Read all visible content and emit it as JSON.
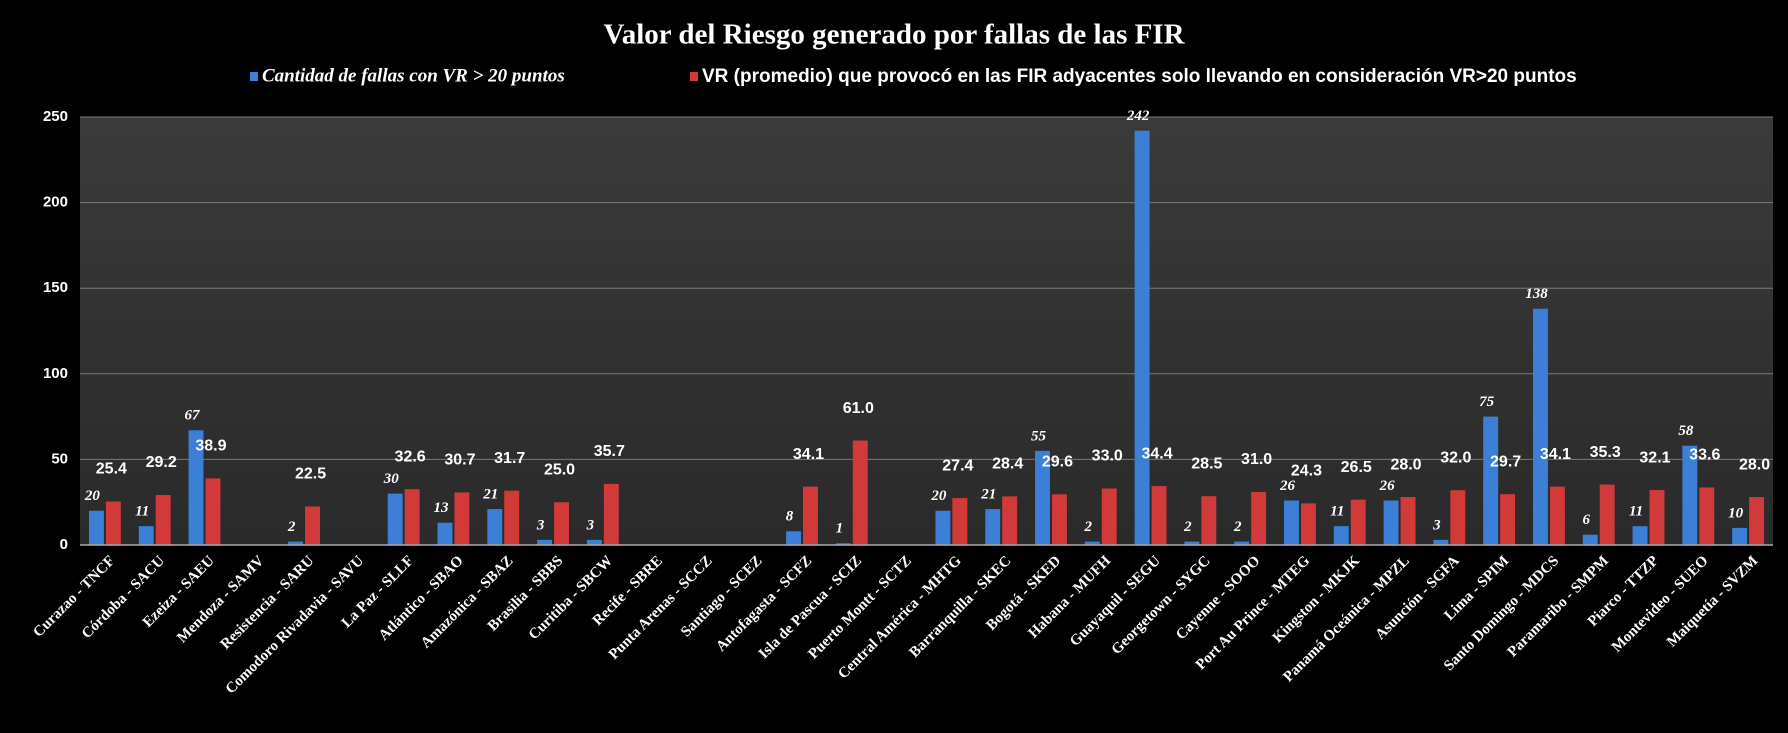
{
  "chart_data": {
    "type": "bar",
    "title": "Valor del Riesgo generado por fallas de las FIR",
    "categories": [
      "Curazao - TNCF",
      "Córdoba - SACU",
      "Ezeiza - SAEU",
      "Mendoza - SAMV",
      "Resistencia - SARU",
      "Comodoro Rivadavia - SAVU",
      "La Paz - SLLF",
      "Atlántico - SBAO",
      "Amazónica - SBAZ",
      "Brasilia - SBBS",
      "Curitiba - SBCW",
      "Recife - SBRE",
      "Punta Arenas - SCCZ",
      "Santiago - SCEZ",
      "Antofagasta - SCFZ",
      "Isla de Pascua - SCIZ",
      "Puerto Montt - SCTZ",
      "Central América - MHTG",
      "Barranquilla - SKEC",
      "Bogotá - SKED",
      "Habana - MUFH",
      "Guayaquil - SEGU",
      "Georgetown - SYGC",
      "Cayenne - SOOO",
      "Port Au Prince - MTEG",
      "Kingston - MKJK",
      "Panamá Oceánica - MPZL",
      "Asunción - SGFA",
      "Lima - SPIM",
      "Santo Domingo - MDCS",
      "Paramaribo - SMPM",
      "Piarco - TTZP",
      "Montevideo - SUEO",
      "Maiquetía - SVZM"
    ],
    "series": [
      {
        "name": "Cantidad de fallas con VR > 20 puntos",
        "color": "#3b7fd6",
        "values": [
          20,
          11,
          67,
          null,
          2,
          null,
          30,
          13,
          21,
          3,
          3,
          null,
          null,
          null,
          8,
          1,
          null,
          20,
          21,
          55,
          2,
          242,
          2,
          2,
          26,
          11,
          26,
          3,
          75,
          138,
          6,
          11,
          58,
          10
        ]
      },
      {
        "name": "VR (promedio) que provocó en las FIR adyacentes solo llevando en consideración VR>20 puntos",
        "color": "#d23a3a",
        "values": [
          25.4,
          29.2,
          38.9,
          null,
          22.5,
          null,
          32.6,
          30.7,
          31.7,
          25.0,
          35.7,
          null,
          null,
          null,
          34.1,
          61.0,
          null,
          27.4,
          28.4,
          29.6,
          33.0,
          34.4,
          28.5,
          31.0,
          24.3,
          26.5,
          28.0,
          32.0,
          29.7,
          34.1,
          35.3,
          32.1,
          33.6,
          28.0
        ],
        "value_labels": [
          "25.4",
          "29.2",
          "38.9",
          null,
          "22.5",
          null,
          "32.6",
          "30.7",
          "31.7",
          "25.0",
          "35.7",
          null,
          null,
          null,
          "34.1",
          "61.0",
          null,
          "27.4",
          "28.4",
          "29.6",
          "33.0",
          "34.4",
          "28.5",
          "31.0",
          "24.3",
          "26.5",
          "28.0",
          "32.0",
          "29.7",
          "34.1",
          "35.3",
          "32.1",
          "33.6",
          "28.0"
        ]
      }
    ],
    "ylim": [
      0,
      250
    ],
    "yticks": [
      0,
      50,
      100,
      150,
      200,
      250
    ],
    "grid": true
  }
}
